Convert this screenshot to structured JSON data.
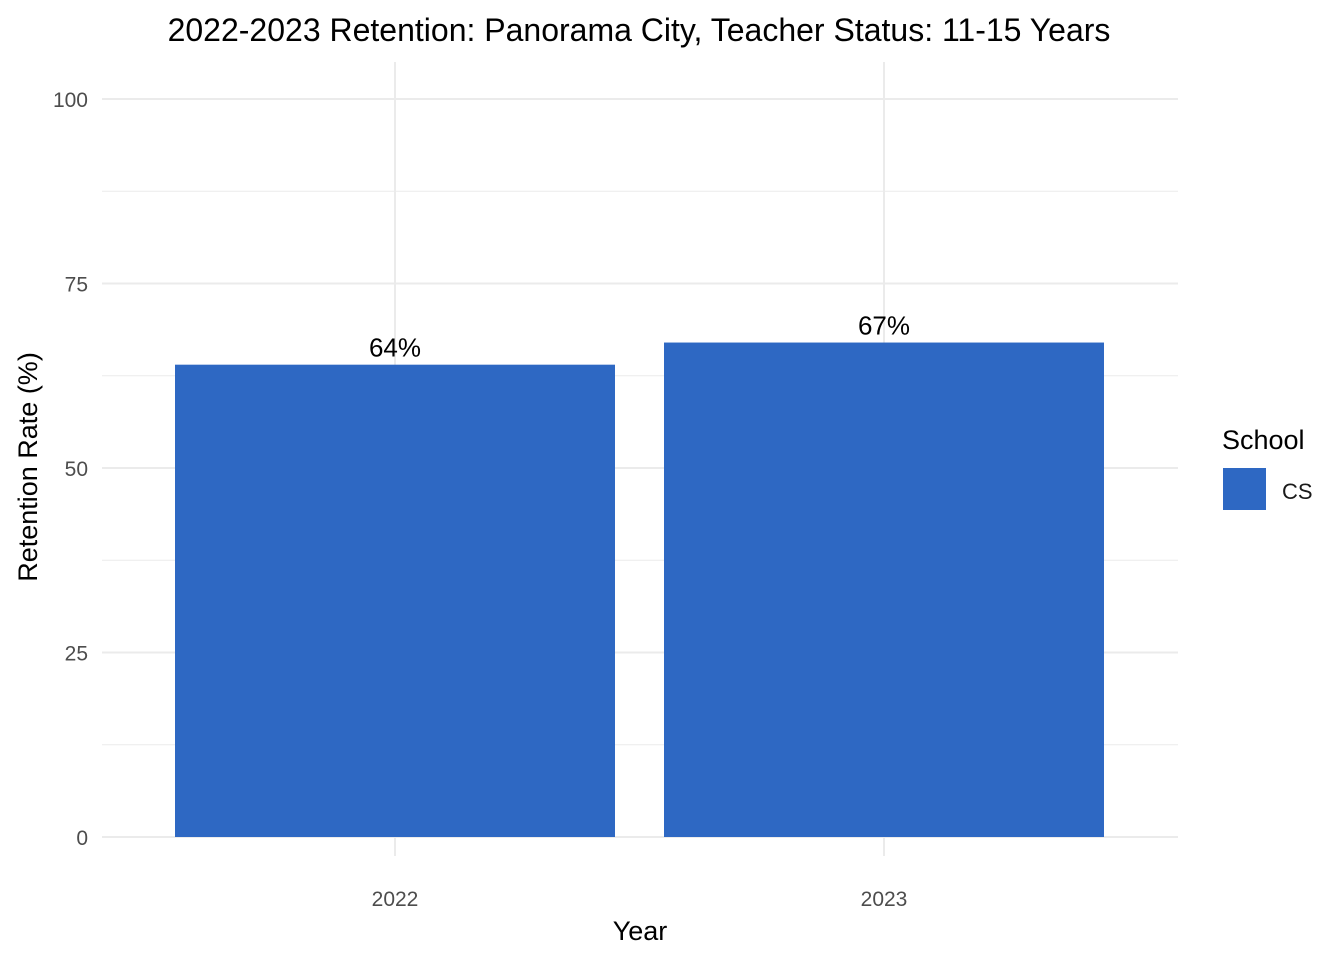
{
  "chart_data": {
    "type": "bar",
    "title": "2022-2023 Retention: Panorama City, Teacher Status: 11-15 Years",
    "xlabel": "Year",
    "ylabel": "Retention Rate (%)",
    "categories": [
      "2022",
      "2023"
    ],
    "series": [
      {
        "name": "CS",
        "values": [
          64,
          67
        ],
        "labels": [
          "64%",
          "67%"
        ],
        "color": "#2E68C3"
      }
    ],
    "ylim": [
      0,
      100
    ],
    "yticks": [
      0,
      25,
      50,
      75,
      100
    ],
    "grid": true,
    "legend": {
      "title": "School",
      "placement": "right"
    }
  }
}
